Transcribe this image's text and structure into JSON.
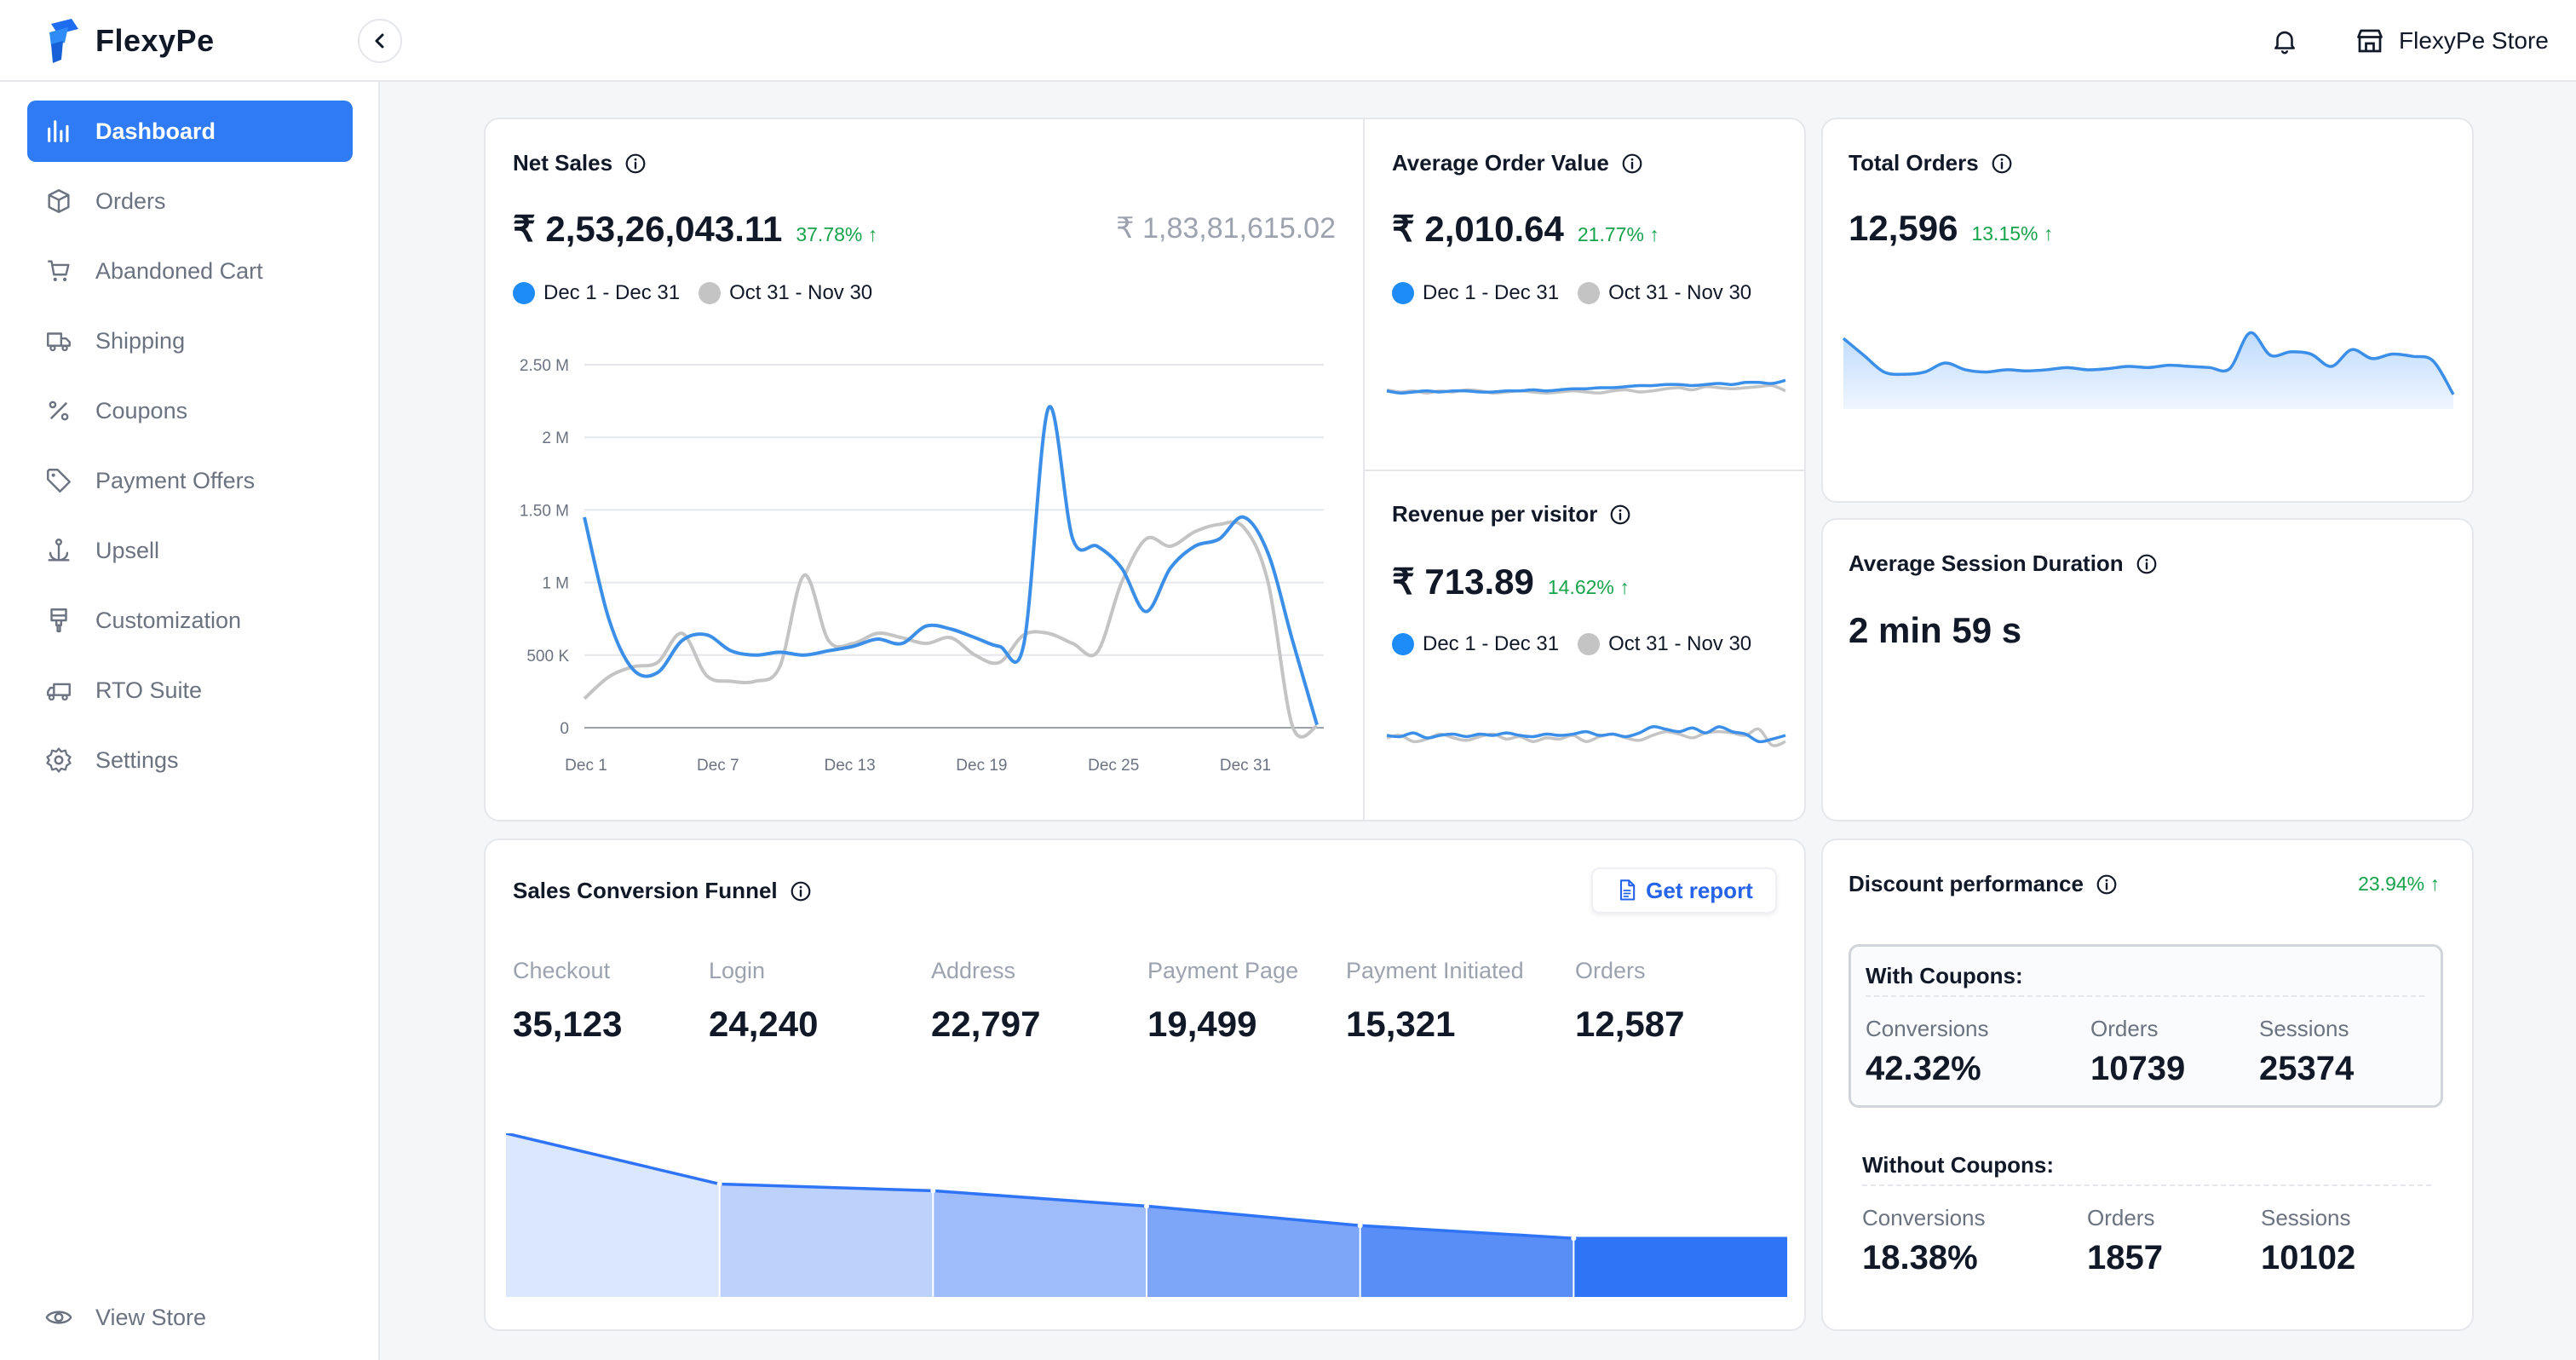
{
  "brand": {
    "name": "FlexyPe",
    "accent": "#2f7af5"
  },
  "header": {
    "store_name": "FlexyPe Store",
    "bell_icon": "bell-icon",
    "store_icon": "store-icon"
  },
  "sidebar": {
    "items": [
      {
        "label": "Dashboard",
        "icon": "chart-bar-icon",
        "active": true
      },
      {
        "label": "Orders",
        "icon": "box-icon"
      },
      {
        "label": "Abandoned Cart",
        "icon": "cart-icon"
      },
      {
        "label": "Shipping",
        "icon": "truck-icon"
      },
      {
        "label": "Coupons",
        "icon": "percent-icon"
      },
      {
        "label": "Payment Offers",
        "icon": "tag-icon"
      },
      {
        "label": "Upsell",
        "icon": "anchor-icon"
      },
      {
        "label": "Customization",
        "icon": "brush-icon"
      },
      {
        "label": "RTO Suite",
        "icon": "truck-return-icon"
      },
      {
        "label": "Settings",
        "icon": "gear-icon"
      }
    ],
    "view_store": "View Store"
  },
  "net_sales": {
    "title": "Net Sales",
    "value": "₹ 2,53,26,043.11",
    "change": "37.78% ↑",
    "previous": "₹ 1,83,81,615.02",
    "legend_current": "Dec 1 - Dec 31",
    "legend_previous": "Oct 31 - Nov 30"
  },
  "aov": {
    "title": "Average Order Value",
    "value": "₹ 2,010.64",
    "change": "21.77% ↑",
    "legend_current": "Dec 1 - Dec 31",
    "legend_previous": "Oct 31 - Nov 30"
  },
  "rpv": {
    "title": "Revenue per visitor",
    "value": "₹ 713.89",
    "change": "14.62% ↑",
    "legend_current": "Dec 1 - Dec 31",
    "legend_previous": "Oct 31 - Nov 30"
  },
  "total_orders": {
    "title": "Total Orders",
    "value": "12,596",
    "change": "13.15% ↑"
  },
  "session": {
    "title": "Average Session Duration",
    "value": "2 min 59 s"
  },
  "funnel": {
    "title": "Sales Conversion Funnel",
    "report_label": "Get report",
    "stages": [
      {
        "label": "Checkout",
        "value": "35,123"
      },
      {
        "label": "Login",
        "value": "24,240"
      },
      {
        "label": "Address",
        "value": "22,797"
      },
      {
        "label": "Payment Page",
        "value": "19,499"
      },
      {
        "label": "Payment Initiated",
        "value": "15,321"
      },
      {
        "label": "Orders",
        "value": "12,587"
      }
    ]
  },
  "discount": {
    "title": "Discount performance",
    "change": "23.94% ↑",
    "with": {
      "title": "With Coupons:",
      "conversions_label": "Conversions",
      "conversions": "42.32%",
      "orders_label": "Orders",
      "orders": "10739",
      "sessions_label": "Sessions",
      "sessions": "25374"
    },
    "without": {
      "title": "Without Coupons:",
      "conversions_label": "Conversions",
      "conversions": "18.38%",
      "orders_label": "Orders",
      "orders": "1857",
      "sessions_label": "Sessions",
      "sessions": "10102"
    }
  },
  "chart_data": [
    {
      "type": "line",
      "title": "Net Sales",
      "yticks": [
        "0",
        "500 K",
        "1 M",
        "1.50 M",
        "2 M",
        "2.50 M"
      ],
      "ylim": [
        0,
        2500000
      ],
      "xticks": [
        "Dec 1",
        "Dec 7",
        "Dec 13",
        "Dec 19",
        "Dec 25",
        "Dec 31"
      ],
      "x": [
        1,
        2,
        3,
        4,
        5,
        6,
        7,
        8,
        9,
        10,
        11,
        12,
        13,
        14,
        15,
        16,
        17,
        18,
        19,
        20,
        21,
        22,
        23,
        24,
        25,
        26,
        27,
        28,
        29,
        30,
        31
      ],
      "series": [
        {
          "name": "Dec 1 - Dec 31",
          "color": "#3b8fe8",
          "values": [
            1450000,
            750000,
            400000,
            380000,
            600000,
            640000,
            530000,
            500000,
            520000,
            500000,
            530000,
            560000,
            610000,
            580000,
            700000,
            680000,
            620000,
            560000,
            580000,
            2200000,
            1300000,
            1250000,
            1100000,
            800000,
            1100000,
            1250000,
            1300000,
            1450000,
            1200000,
            600000,
            20000
          ]
        },
        {
          "name": "Oct 31 - Nov 30",
          "color": "#c4c4c4",
          "values": [
            200000,
            350000,
            420000,
            450000,
            650000,
            360000,
            320000,
            320000,
            420000,
            1050000,
            600000,
            580000,
            650000,
            620000,
            580000,
            620000,
            500000,
            450000,
            640000,
            650000,
            580000,
            520000,
            1000000,
            1300000,
            1250000,
            1350000,
            1400000,
            1380000,
            1000000,
            10000,
            10000
          ]
        }
      ]
    },
    {
      "type": "line",
      "title": "Average Order Value",
      "series": [
        {
          "name": "Dec 1 - Dec 31",
          "color": "#3b8fe8",
          "values": [
            52,
            50,
            51,
            52,
            51,
            52,
            52,
            51,
            51,
            52,
            52,
            53,
            52,
            53,
            54,
            54,
            55,
            55,
            56,
            57,
            57,
            58,
            58,
            57,
            58,
            59,
            58,
            60,
            60,
            59,
            62
          ]
        },
        {
          "name": "Oct 31 - Nov 30",
          "color": "#c4c4c4",
          "values": [
            53,
            51,
            52,
            50,
            52,
            51,
            53,
            52,
            50,
            51,
            52,
            51,
            50,
            51,
            52,
            51,
            50,
            52,
            53,
            51,
            52,
            54,
            55,
            53,
            56,
            55,
            54,
            55,
            56,
            57,
            52
          ]
        }
      ]
    },
    {
      "type": "line",
      "title": "Revenue per visitor",
      "series": [
        {
          "name": "Dec 1 - Dec 31",
          "color": "#3b8fe8",
          "values": [
            55,
            54,
            57,
            53,
            55,
            56,
            54,
            56,
            55,
            57,
            55,
            54,
            56,
            55,
            56,
            58,
            55,
            56,
            54,
            57,
            62,
            60,
            58,
            61,
            57,
            62,
            58,
            56,
            50,
            52,
            55
          ]
        },
        {
          "name": "Oct 31 - Nov 30",
          "color": "#c4c4c4",
          "values": [
            53,
            55,
            50,
            52,
            56,
            53,
            51,
            54,
            56,
            52,
            54,
            50,
            53,
            52,
            55,
            50,
            54,
            56,
            53,
            51,
            55,
            58,
            56,
            53,
            57,
            58,
            57,
            55,
            60,
            47,
            50
          ]
        }
      ]
    },
    {
      "type": "area",
      "title": "Total Orders",
      "series": [
        {
          "name": "Total Orders",
          "color": "#3b8fe8",
          "values": [
            70,
            55,
            40,
            38,
            40,
            48,
            42,
            40,
            42,
            41,
            42,
            44,
            42,
            43,
            45,
            44,
            46,
            45,
            44,
            43,
            75,
            55,
            58,
            56,
            45,
            60,
            52,
            56,
            54,
            50,
            20
          ]
        }
      ]
    }
  ]
}
